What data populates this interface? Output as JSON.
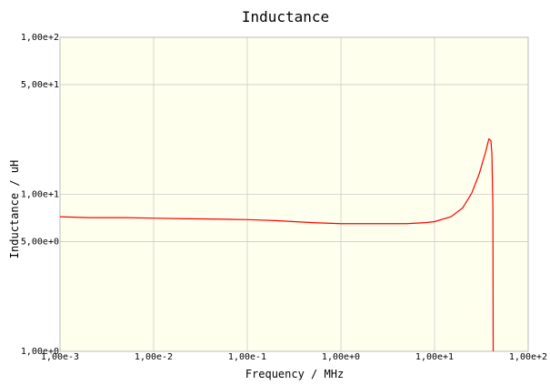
{
  "chart_data": {
    "type": "line",
    "title": "Inductance",
    "xlabel": "Frequency / MHz",
    "ylabel": "Inductance / uH",
    "x_scale": "log",
    "y_scale": "log",
    "xlim": [
      0.001,
      100
    ],
    "ylim": [
      1,
      100
    ],
    "grid": true,
    "x_ticks": [
      {
        "value": 0.001,
        "label": "1,00e-3"
      },
      {
        "value": 0.01,
        "label": "1,00e-2"
      },
      {
        "value": 0.1,
        "label": "1,00e-1"
      },
      {
        "value": 1,
        "label": "1,00e+0"
      },
      {
        "value": 10,
        "label": "1,00e+1"
      },
      {
        "value": 100,
        "label": "1,00e+2"
      }
    ],
    "y_ticks": [
      {
        "value": 1,
        "label": "1,00e+0"
      },
      {
        "value": 5,
        "label": "5,00e+0"
      },
      {
        "value": 10,
        "label": "1,00e+1"
      },
      {
        "value": 50,
        "label": "5,00e+1"
      },
      {
        "value": 100,
        "label": "1,00e+2"
      }
    ],
    "colors": {
      "plot_bg": "#ffffee",
      "line": "#ff0000",
      "grid": "#cccccc",
      "frame": "#bbbbbb"
    },
    "series": [
      {
        "x": [
          0.001,
          0.002,
          0.005,
          0.01,
          0.02,
          0.05,
          0.1,
          0.2,
          0.5,
          1,
          2,
          5,
          8,
          10,
          15,
          20,
          25,
          30,
          35,
          38,
          40,
          41,
          42,
          42.3
        ],
        "y": [
          7.2,
          7.1,
          7.1,
          7.05,
          7.0,
          6.95,
          6.9,
          6.8,
          6.6,
          6.5,
          6.5,
          6.5,
          6.6,
          6.7,
          7.2,
          8.2,
          10.2,
          13.5,
          18.5,
          22.5,
          22.0,
          18.0,
          8.0,
          1.0
        ]
      }
    ]
  }
}
